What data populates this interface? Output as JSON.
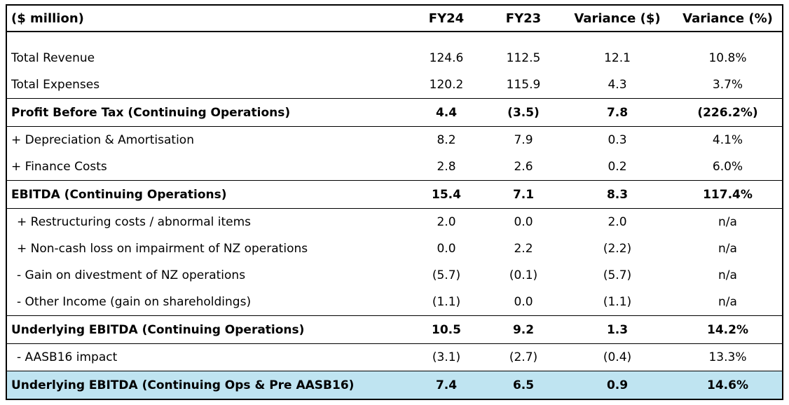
{
  "table": {
    "header": [
      "($ million)",
      "FY24",
      "FY23",
      "Variance ($)",
      "Variance (%)"
    ],
    "rows": [
      [
        "Total Revenue",
        "124.6",
        "112.5",
        "12.1",
        "10.8%"
      ],
      [
        "Total Expenses",
        "120.2",
        "115.9",
        "4.3",
        "3.7%"
      ],
      [
        "Profit Before Tax (Continuing Operations)",
        "4.4",
        "(3.5)",
        "7.8",
        "(226.2%)"
      ],
      [
        "+ Depreciation & Amortisation",
        "8.2",
        "7.9",
        "0.3",
        "4.1%"
      ],
      [
        "+ Finance Costs",
        "2.8",
        "2.6",
        "0.2",
        "6.0%"
      ],
      [
        "EBITDA (Continuing Operations)",
        "15.4",
        "7.1",
        "8.3",
        "117.4%"
      ],
      [
        "+ Restructuring costs / abnormal items",
        "2.0",
        "0.0",
        "2.0",
        "n/a"
      ],
      [
        "+ Non-cash loss on impairment of NZ operations",
        "0.0",
        "2.2",
        "(2.2)",
        "n/a"
      ],
      [
        "- Gain on divestment of NZ operations",
        "(5.7)",
        "(0.1)",
        "(5.7)",
        "n/a"
      ],
      [
        "- Other Income (gain on shareholdings)",
        "(1.1)",
        "0.0",
        "(1.1)",
        "n/a"
      ],
      [
        "Underlying EBITDA (Continuing Operations)",
        "10.5",
        "9.2",
        "1.3",
        "14.2%"
      ],
      [
        "- AASB16 impact",
        "(3.1)",
        "(2.7)",
        "(0.4)",
        "13.3%"
      ],
      [
        "Underlying EBITDA (Continuing Ops & Pre AASB16)",
        "7.4",
        "6.5",
        "0.9",
        "14.6%"
      ]
    ]
  }
}
